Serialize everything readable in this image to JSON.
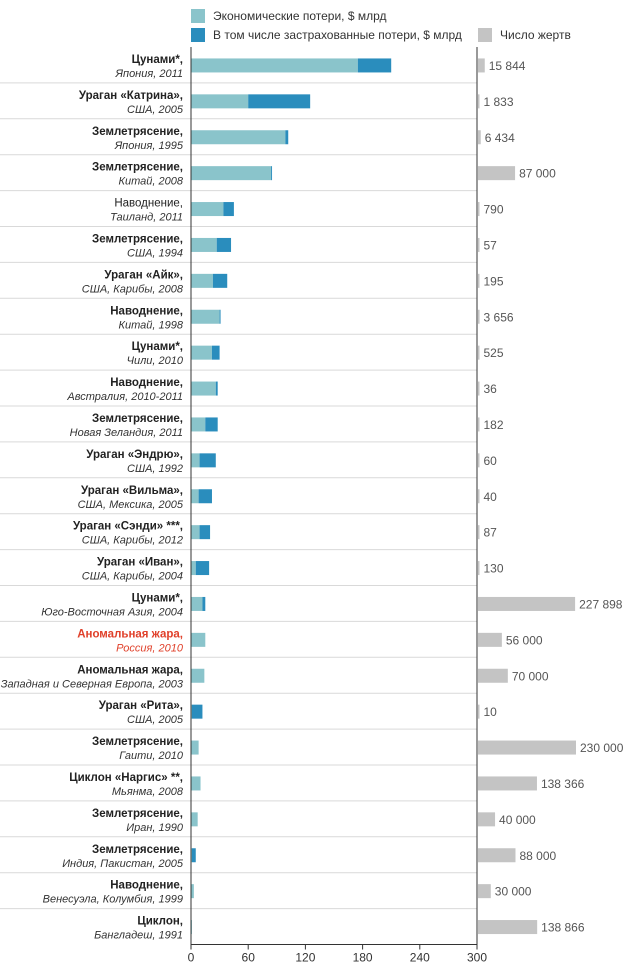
{
  "legend": {
    "economic": "Экономические потери, $ млрд",
    "insured": "В том числе застрахованные потери, $ млрд",
    "victims": "Число жертв"
  },
  "colors": {
    "economic": "#8ac4cb",
    "insured": "#2a8dbd",
    "victims": "#c4c4c4",
    "highlight": "#e0402a",
    "axis": "#333333",
    "grid": "#d9d9d9"
  },
  "chart_data": {
    "type": "bar",
    "orientation": "horizontal",
    "xlim": [
      0,
      300
    ],
    "xticks": [
      "0",
      "60",
      "120",
      "180",
      "240",
      "300"
    ],
    "victims_max": 230000,
    "series": [
      {
        "name": "Экономические потери, $ млрд",
        "key": "economic"
      },
      {
        "name": "В том числе застрахованные потери, $ млрд",
        "key": "insured"
      },
      {
        "name": "Число жертв",
        "key": "victims"
      }
    ],
    "events": [
      {
        "name": "Цунами*,",
        "place": "Япония, 2011",
        "economic": 210,
        "insured": 35,
        "victims": 15844,
        "victims_label": "15 844",
        "bold": true,
        "highlight": false
      },
      {
        "name": "Ураган «Катрина»,",
        "place": "США, 2005",
        "economic": 125,
        "insured": 65,
        "victims": 1833,
        "victims_label": "1 833",
        "bold": true,
        "highlight": false
      },
      {
        "name": "Землетрясение,",
        "place": "Япония, 1995",
        "economic": 102,
        "insured": 3,
        "victims": 6434,
        "victims_label": "6 434",
        "bold": true,
        "highlight": false
      },
      {
        "name": "Землетрясение,",
        "place": "Китай, 2008",
        "economic": 85,
        "insured": 1,
        "victims": 87000,
        "victims_label": "87 000",
        "bold": true,
        "highlight": false
      },
      {
        "name": "Наводнение,",
        "place": "Таиланд, 2011",
        "economic": 45,
        "insured": 11,
        "victims": 790,
        "victims_label": "790",
        "bold": false,
        "highlight": false
      },
      {
        "name": "Землетрясение,",
        "place": "США, 1994",
        "economic": 42,
        "insured": 15,
        "victims": 57,
        "victims_label": "57",
        "bold": true,
        "highlight": false
      },
      {
        "name": "Ураган «Айк»,",
        "place": "США, Карибы, 2008",
        "economic": 38,
        "insured": 15,
        "victims": 195,
        "victims_label": "195",
        "bold": true,
        "highlight": false
      },
      {
        "name": "Наводнение,",
        "place": "Китай, 1998",
        "economic": 31,
        "insured": 1,
        "victims": 3656,
        "victims_label": "3 656",
        "bold": true,
        "highlight": false
      },
      {
        "name": "Цунами*,",
        "place": "Чили, 2010",
        "economic": 30,
        "insured": 8,
        "victims": 525,
        "victims_label": "525",
        "bold": true,
        "highlight": false
      },
      {
        "name": "Наводнение,",
        "place": "Австралия, 2010-2011",
        "economic": 28,
        "insured": 2,
        "victims": 36,
        "victims_label": "36",
        "bold": true,
        "highlight": false
      },
      {
        "name": "Землетрясение,",
        "place": "Новая Зеландия, 2011",
        "economic": 28,
        "insured": 13,
        "victims": 182,
        "victims_label": "182",
        "bold": true,
        "highlight": false
      },
      {
        "name": "Ураган «Эндрю»,",
        "place": "США, 1992",
        "economic": 26,
        "insured": 17,
        "victims": 60,
        "victims_label": "60",
        "bold": true,
        "highlight": false
      },
      {
        "name": "Ураган «Вильма»,",
        "place": "США, Мексика, 2005",
        "economic": 22,
        "insured": 14,
        "victims": 40,
        "victims_label": "40",
        "bold": true,
        "highlight": false
      },
      {
        "name": "Ураган «Сэнди» ***,",
        "place": "США, Карибы, 2012",
        "economic": 20,
        "insured": 11,
        "victims": 87,
        "victims_label": "87",
        "bold": true,
        "highlight": false
      },
      {
        "name": "Ураган «Иван»,",
        "place": "США, Карибы, 2004",
        "economic": 19,
        "insured": 14,
        "victims": 130,
        "victims_label": "130",
        "bold": true,
        "highlight": false
      },
      {
        "name": "Цунами*,",
        "place": "Юго-Восточная Азия, 2004",
        "economic": 15,
        "insured": 3,
        "victims": 227898,
        "victims_label": "227 898",
        "bold": true,
        "highlight": false
      },
      {
        "name": "Аномальная жара,",
        "place": "Россия, 2010",
        "economic": 15,
        "insured": 0,
        "victims": 56000,
        "victims_label": "56 000",
        "bold": true,
        "highlight": true
      },
      {
        "name": "Аномальная жара,",
        "place": "Западная и Северная Европа, 2003",
        "economic": 14,
        "insured": 0,
        "victims": 70000,
        "victims_label": "70 000",
        "bold": true,
        "highlight": false
      },
      {
        "name": "Ураган «Рита»,",
        "place": "США, 2005",
        "economic": 12,
        "insured": 11,
        "victims": 10,
        "victims_label": "10",
        "bold": true,
        "highlight": false
      },
      {
        "name": "Землетрясение,",
        "place": "Гаити, 2010",
        "economic": 8,
        "insured": 0,
        "victims": 230000,
        "victims_label": "230 000",
        "bold": true,
        "highlight": false
      },
      {
        "name": "Циклон «Наргис» **,",
        "place": "Мьянма, 2008",
        "economic": 10,
        "insured": 0,
        "victims": 138366,
        "victims_label": "138 366",
        "bold": true,
        "highlight": false
      },
      {
        "name": "Землетрясение,",
        "place": "Иран, 1990",
        "economic": 7,
        "insured": 0,
        "victims": 40000,
        "victims_label": "40 000",
        "bold": true,
        "highlight": false
      },
      {
        "name": "Землетрясение,",
        "place": "Индия, Пакистан, 2005",
        "economic": 5,
        "insured": 4,
        "victims": 88000,
        "victims_label": "88 000",
        "bold": true,
        "highlight": false
      },
      {
        "name": "Наводнение,",
        "place": "Венесуэла, Колумбия, 1999",
        "economic": 3,
        "insured": 0,
        "victims": 30000,
        "victims_label": "30 000",
        "bold": true,
        "highlight": false
      },
      {
        "name": "Циклон,",
        "place": "Бангладеш, 1991",
        "economic": 1,
        "insured": 0,
        "victims": 138866,
        "victims_label": "138 866",
        "bold": true,
        "highlight": false
      }
    ]
  }
}
